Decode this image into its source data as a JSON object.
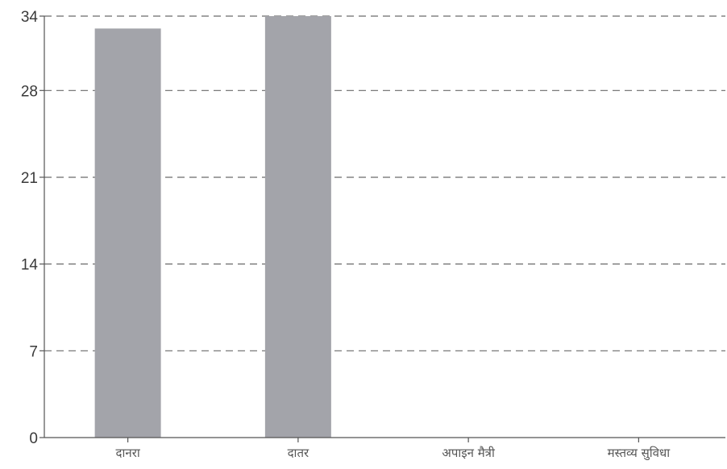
{
  "chart_data": {
    "type": "bar",
    "categories": [
      "दानरा",
      "दातर",
      "अपाइन मैत्री",
      "मस्तव्य सुविधा"
    ],
    "values": [
      33,
      34,
      0,
      0
    ],
    "ylim": [
      0,
      34
    ],
    "yticks": [
      0,
      7,
      14,
      21,
      28,
      34
    ],
    "grid": true,
    "colors": {
      "bar": "#a3a4aa"
    }
  }
}
